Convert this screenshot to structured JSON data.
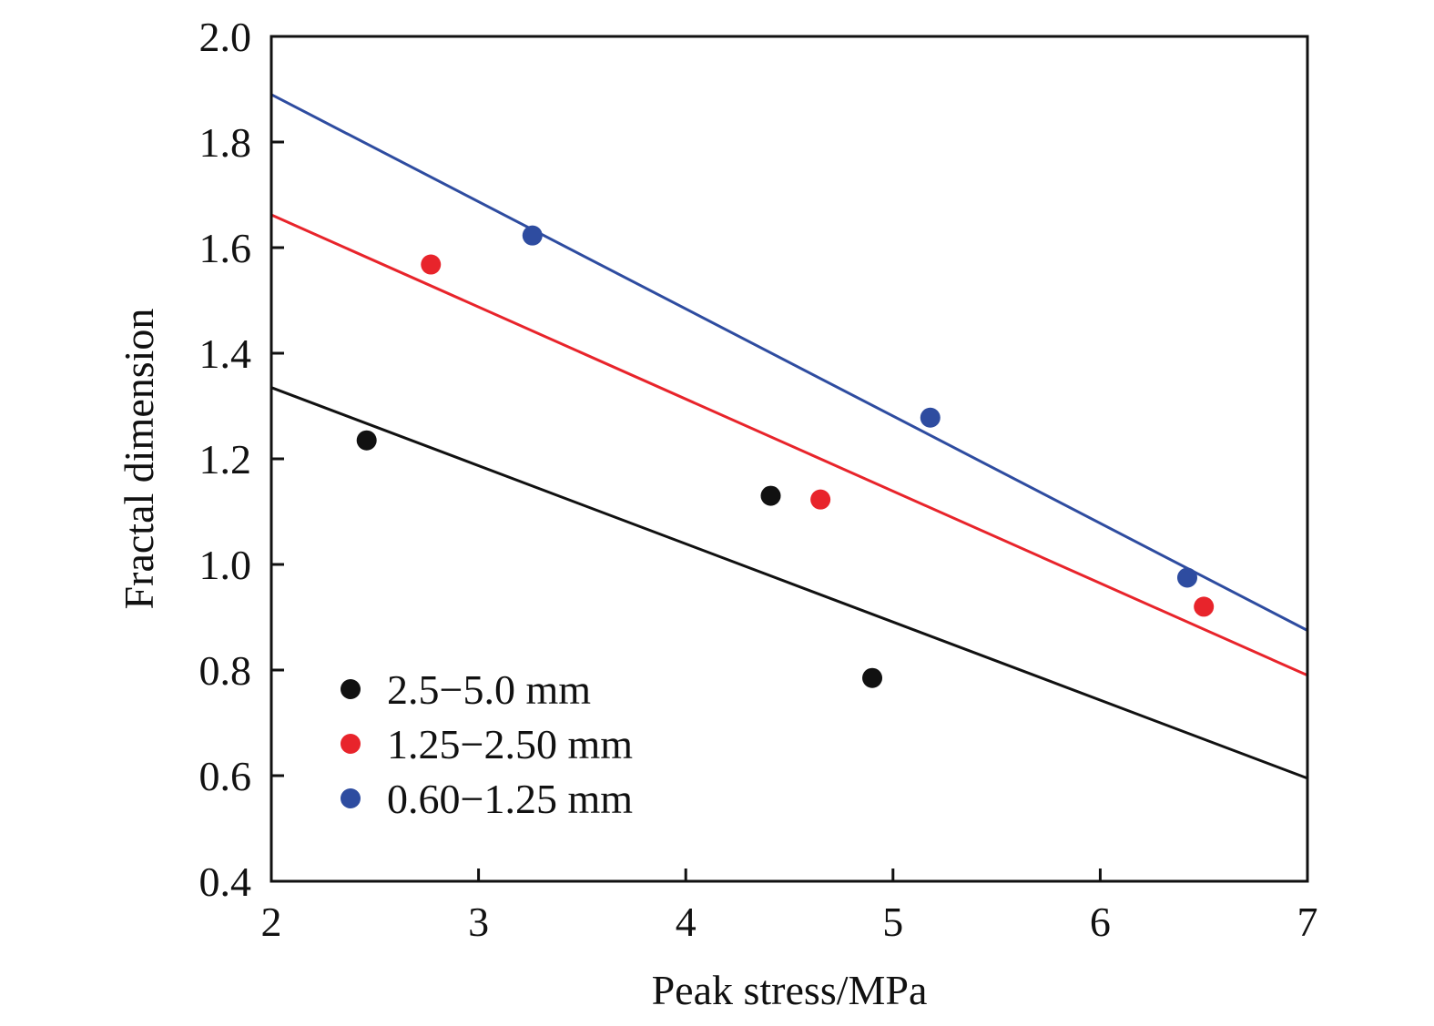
{
  "chart_data": {
    "type": "scatter",
    "title": "",
    "xlabel": "Peak stress/MPa",
    "ylabel": "Fractal dimension",
    "xlim": [
      2,
      7
    ],
    "ylim": [
      0.4,
      2.0
    ],
    "xticks": [
      "2",
      "3",
      "4",
      "5",
      "6",
      "7"
    ],
    "yticks": [
      "0.4",
      "0.6",
      "0.8",
      "1.0",
      "1.2",
      "1.4",
      "1.6",
      "1.8",
      "2.0"
    ],
    "grid": false,
    "legend_position": "bottom-left",
    "series": [
      {
        "name": "2.5−5.0 mm",
        "color": "#111111",
        "points": [
          [
            2.46,
            1.235
          ],
          [
            4.41,
            1.13
          ],
          [
            4.9,
            0.785
          ]
        ],
        "fit_line": [
          [
            2,
            1.335
          ],
          [
            7,
            0.595
          ]
        ]
      },
      {
        "name": "1.25−2.50 mm",
        "color": "#e8242b",
        "points": [
          [
            2.77,
            1.568
          ],
          [
            4.65,
            1.123
          ],
          [
            6.5,
            0.92
          ]
        ],
        "fit_line": [
          [
            2,
            1.662
          ],
          [
            7,
            0.79
          ]
        ]
      },
      {
        "name": "0.60−1.25 mm",
        "color": "#2e4ca0",
        "points": [
          [
            3.26,
            1.623
          ],
          [
            5.18,
            1.278
          ],
          [
            6.42,
            0.975
          ]
        ],
        "fit_line": [
          [
            2,
            1.89
          ],
          [
            7,
            0.875
          ]
        ]
      }
    ]
  }
}
